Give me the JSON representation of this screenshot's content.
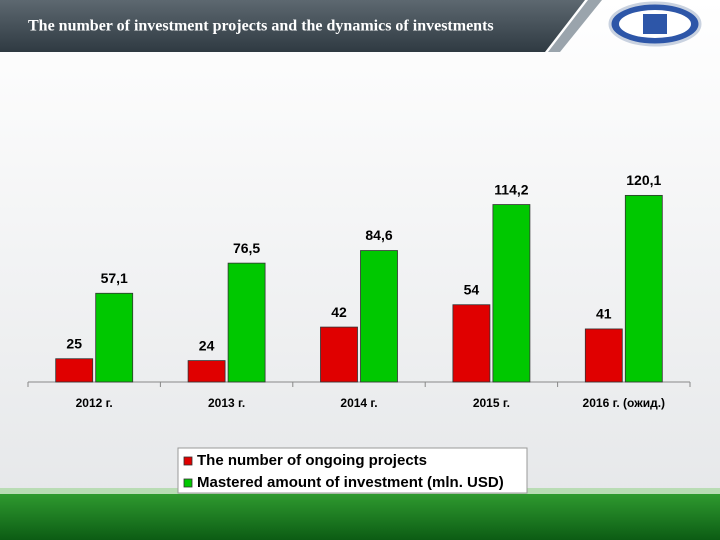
{
  "chart_data": {
    "type": "bar",
    "title": "The number of investment projects and the dynamics of investments",
    "categories": [
      "2012 г.",
      "2013 г.",
      "2014 г.",
      "2015 г.",
      "2016 г. (ожид.)"
    ],
    "series": [
      {
        "name": "The number of ongoing projects",
        "color": "#e00000",
        "axis": "y2",
        "values": [
          25,
          24,
          42,
          54,
          41
        ]
      },
      {
        "name": "Mastered amount of investment (mln. USD)",
        "color": "#00c800",
        "values": [
          57.1,
          76.5,
          84.6,
          114.2,
          120.1
        ],
        "value_labels": [
          "57,1",
          "76,5",
          "84,6",
          "114,2",
          "120,1"
        ]
      }
    ],
    "ylim": [
      0,
      130
    ],
    "y2lim": [
      12.5,
      121
    ],
    "legend": "bottom"
  }
}
